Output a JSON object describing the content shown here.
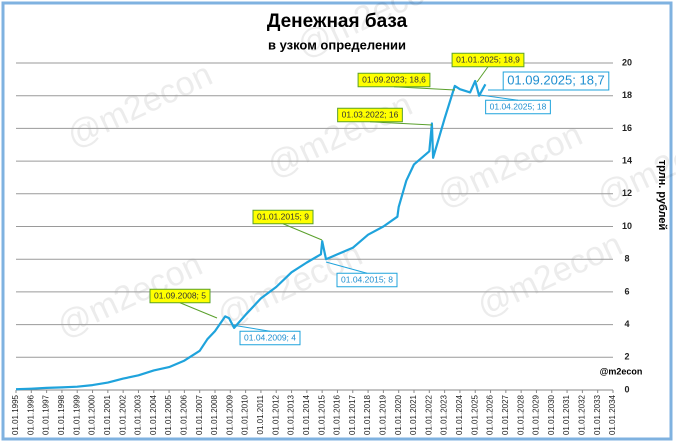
{
  "chart_data": {
    "type": "line",
    "title": "Денежная база",
    "subtitle": "в узком определении",
    "y_label": "трлн. рублей",
    "watermark": "@m2econ",
    "x": [
      "01.01.1995",
      "01.01.1996",
      "01.01.1997",
      "01.01.1998",
      "01.01.1999",
      "01.01.2000",
      "01.01.2001",
      "01.01.2002",
      "01.01.2003",
      "01.01.2004",
      "01.01.2005",
      "01.01.2006",
      "01.01.2007",
      "01.07.2007",
      "01.01.2008",
      "01.09.2008",
      "01.12.2008",
      "01.04.2009",
      "01.01.2010",
      "01.01.2011",
      "01.01.2012",
      "01.01.2013",
      "01.01.2014",
      "01.12.2014",
      "01.01.2015",
      "01.04.2015",
      "01.01.2016",
      "01.01.2017",
      "01.01.2018",
      "01.01.2019",
      "01.12.2019",
      "01.01.2020",
      "01.07.2020",
      "01.01.2021",
      "01.01.2022",
      "01.03.2022",
      "01.04.2022",
      "01.01.2023",
      "01.09.2023",
      "01.01.2024",
      "01.09.2024",
      "01.01.2025",
      "01.04.2025",
      "01.09.2025"
    ],
    "series": [
      {
        "color": "#1fa3dc",
        "values": [
          0.05,
          0.08,
          0.13,
          0.16,
          0.2,
          0.3,
          0.45,
          0.7,
          0.9,
          1.2,
          1.4,
          1.8,
          2.4,
          3.1,
          3.6,
          4.5,
          4.4,
          3.8,
          4.6,
          5.6,
          6.3,
          7.2,
          7.8,
          8.3,
          9.1,
          8.0,
          8.3,
          8.7,
          9.5,
          10.0,
          10.6,
          11.2,
          12.8,
          13.8,
          14.6,
          16.3,
          14.2,
          16.6,
          18.6,
          18.4,
          18.2,
          18.9,
          18.0,
          18.7
        ]
      }
    ],
    "xlim": [
      "01.01.1995",
      "01.01.2034"
    ],
    "xticks": [
      "01.01.1995",
      "01.01.1996",
      "01.01.1997",
      "01.01.1998",
      "01.01.1999",
      "01.01.2000",
      "01.01.2001",
      "01.01.2002",
      "01.01.2003",
      "01.01.2004",
      "01.01.2005",
      "01.01.2006",
      "01.01.2007",
      "01.01.2008",
      "01.01.2009",
      "01.01.2010",
      "01.01.2011",
      "01.01.2012",
      "01.01.2013",
      "01.01.2014",
      "01.01.2015",
      "01.01.2016",
      "01.01.2017",
      "01.01.2018",
      "01.01.2019",
      "01.01.2020",
      "01.01.2021",
      "01.01.2022",
      "01.01.2023",
      "01.01.2024",
      "01.01.2025",
      "01.01.2026",
      "01.01.2027",
      "01.01.2028",
      "01.01.2029",
      "01.01.2030",
      "01.01.2031",
      "01.01.2032",
      "01.01.2033",
      "01.01.2034"
    ],
    "ylim": [
      0,
      20
    ],
    "yticks": [
      0,
      2,
      4,
      6,
      8,
      10,
      12,
      14,
      16,
      18,
      20
    ],
    "grid": true,
    "annotations": [
      "01.09.2008; 5",
      "01.04.2009; 4",
      "01.01.2015; 9",
      "01.04.2015; 8",
      "01.03.2022; 16",
      "01.09.2023; 18,6",
      "01.01.2025; 18,9",
      "01.04.2025; 18",
      "01.09.2025; 18,7"
    ]
  }
}
